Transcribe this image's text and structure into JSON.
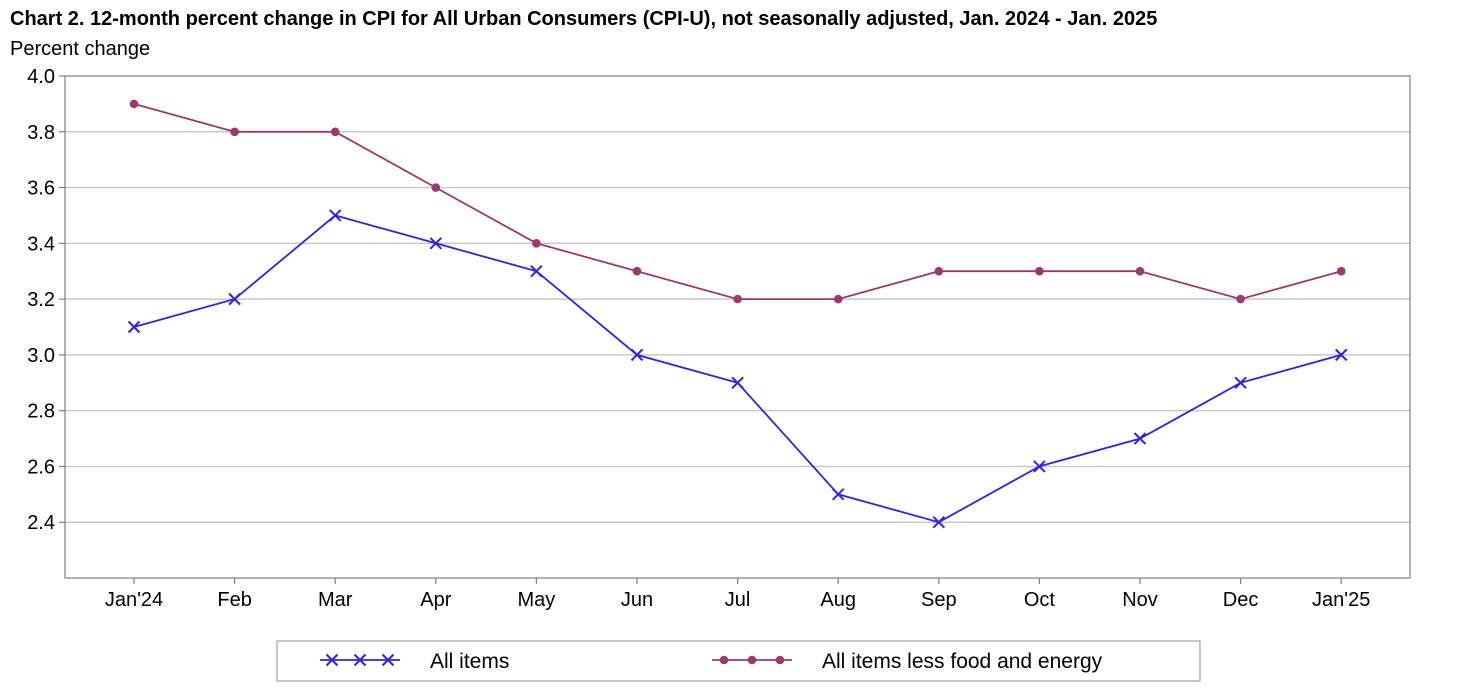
{
  "chart_data": {
    "type": "line",
    "title": "Chart 2. 12-month percent change in CPI for All Urban Consumers (CPI-U), not seasonally adjusted, Jan. 2024 - Jan. 2025",
    "ylabel": "Percent change",
    "xlabel": "",
    "categories": [
      "Jan'24",
      "Feb",
      "Mar",
      "Apr",
      "May",
      "Jun",
      "Jul",
      "Aug",
      "Sep",
      "Oct",
      "Nov",
      "Dec",
      "Jan'25"
    ],
    "ylim": [
      2.2,
      4.0
    ],
    "yticks": [
      "2.4",
      "2.6",
      "2.8",
      "3.0",
      "3.2",
      "3.4",
      "3.6",
      "3.8",
      "4.0"
    ],
    "grid": true,
    "legend_position": "bottom",
    "series": [
      {
        "name": "All items",
        "color": "#3a1ee8",
        "marker": "x",
        "values": [
          3.1,
          3.2,
          3.5,
          3.4,
          3.3,
          3.0,
          2.9,
          2.5,
          2.4,
          2.6,
          2.7,
          2.9,
          3.0
        ]
      },
      {
        "name": "All items less food and energy",
        "color": "#9b3a6e",
        "marker": "circle",
        "values": [
          3.9,
          3.8,
          3.8,
          3.6,
          3.4,
          3.3,
          3.2,
          3.2,
          3.3,
          3.3,
          3.3,
          3.2,
          3.3
        ]
      }
    ]
  }
}
